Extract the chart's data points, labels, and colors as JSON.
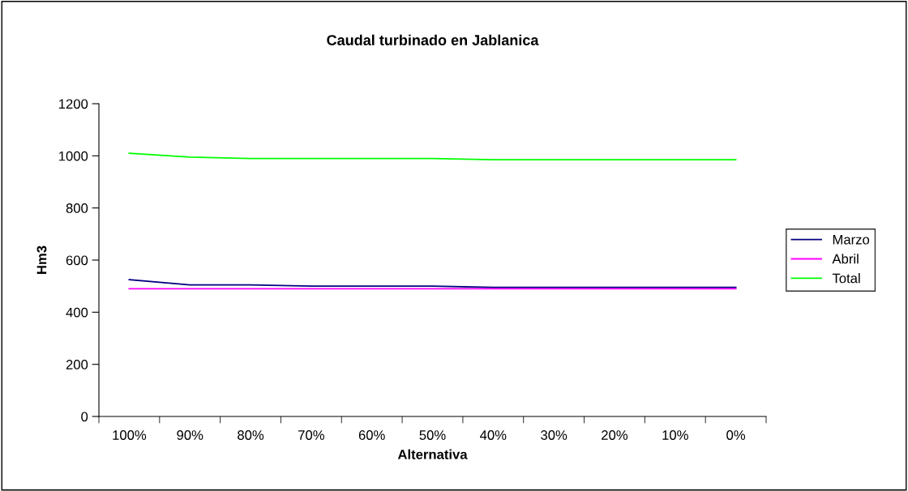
{
  "chart_data": {
    "type": "line",
    "title": "Caudal turbinado en Jablanica",
    "xlabel": "Alternativa",
    "ylabel": "Hm3",
    "categories": [
      "100%",
      "90%",
      "80%",
      "70%",
      "60%",
      "50%",
      "40%",
      "30%",
      "20%",
      "10%",
      "0%"
    ],
    "series": [
      {
        "name": "Marzo",
        "color": "#000080",
        "values": [
          525,
          505,
          505,
          500,
          500,
          500,
          495,
          495,
          495,
          495,
          495
        ]
      },
      {
        "name": "Abril",
        "color": "#ff00ff",
        "values": [
          490,
          490,
          490,
          490,
          490,
          490,
          490,
          490,
          490,
          490,
          490
        ]
      },
      {
        "name": "Total",
        "color": "#00ff00",
        "values": [
          1010,
          995,
          990,
          990,
          990,
          990,
          985,
          985,
          985,
          985,
          985
        ]
      }
    ],
    "ylim": [
      0,
      1200
    ],
    "yticks": [
      0,
      200,
      400,
      600,
      800,
      1000,
      1200
    ],
    "grid": false,
    "legend": "right",
    "marker": "none",
    "line_style": "solid"
  }
}
